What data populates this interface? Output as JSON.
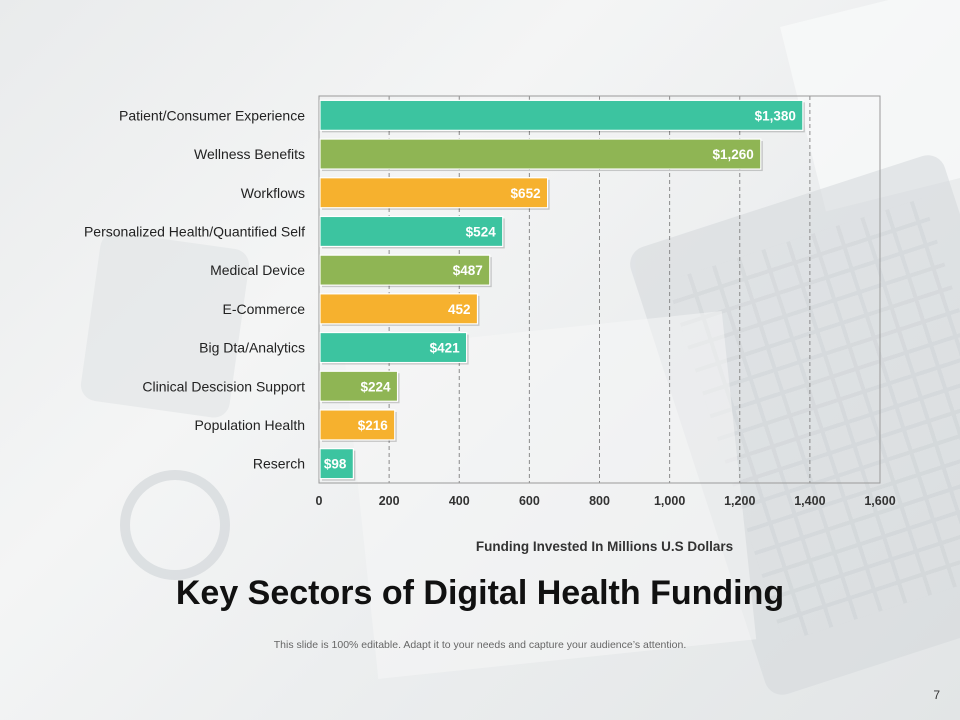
{
  "slide": {
    "title": "Key Sectors of Digital Health Funding",
    "subtitle": "This slide is 100% editable. Adapt it to your needs and capture your audience’s attention.",
    "page_number": "7"
  },
  "chart_data": {
    "type": "bar",
    "orientation": "horizontal",
    "categories": [
      "Patient/Consumer Experience",
      "Wellness Benefits",
      "Workflows",
      "Personalized Health/Quantified Self",
      "Medical Device",
      "E-Commerce",
      "Big Dta/Analytics",
      "Clinical Descision Support",
      "Population Health",
      "Reserch"
    ],
    "values": [
      1380,
      1260,
      652,
      524,
      487,
      452,
      421,
      224,
      216,
      98
    ],
    "value_labels": [
      "$1,380",
      "$1,260",
      "$652",
      "$524",
      "$487",
      "452",
      "$421",
      "$224",
      "$216",
      "$98"
    ],
    "colors": [
      "#3cc4a0",
      "#8fb554",
      "#f6b12e",
      "#3cc4a0",
      "#8fb554",
      "#f6b12e",
      "#3cc4a0",
      "#8fb554",
      "#f6b12e",
      "#3cc4a0"
    ],
    "xlabel": "Funding Invested In Millions U.S Dollars",
    "ylabel": "",
    "xlim": [
      0,
      1600
    ],
    "x_ticks": [
      0,
      200,
      400,
      600,
      800,
      1000,
      1200,
      1400,
      1600
    ],
    "x_tick_labels": [
      "0",
      "200",
      "400",
      "600",
      "800",
      "1,000",
      "1,200",
      "1,400",
      "1,600"
    ],
    "grid": "vertical-dashed",
    "legend": "none"
  }
}
